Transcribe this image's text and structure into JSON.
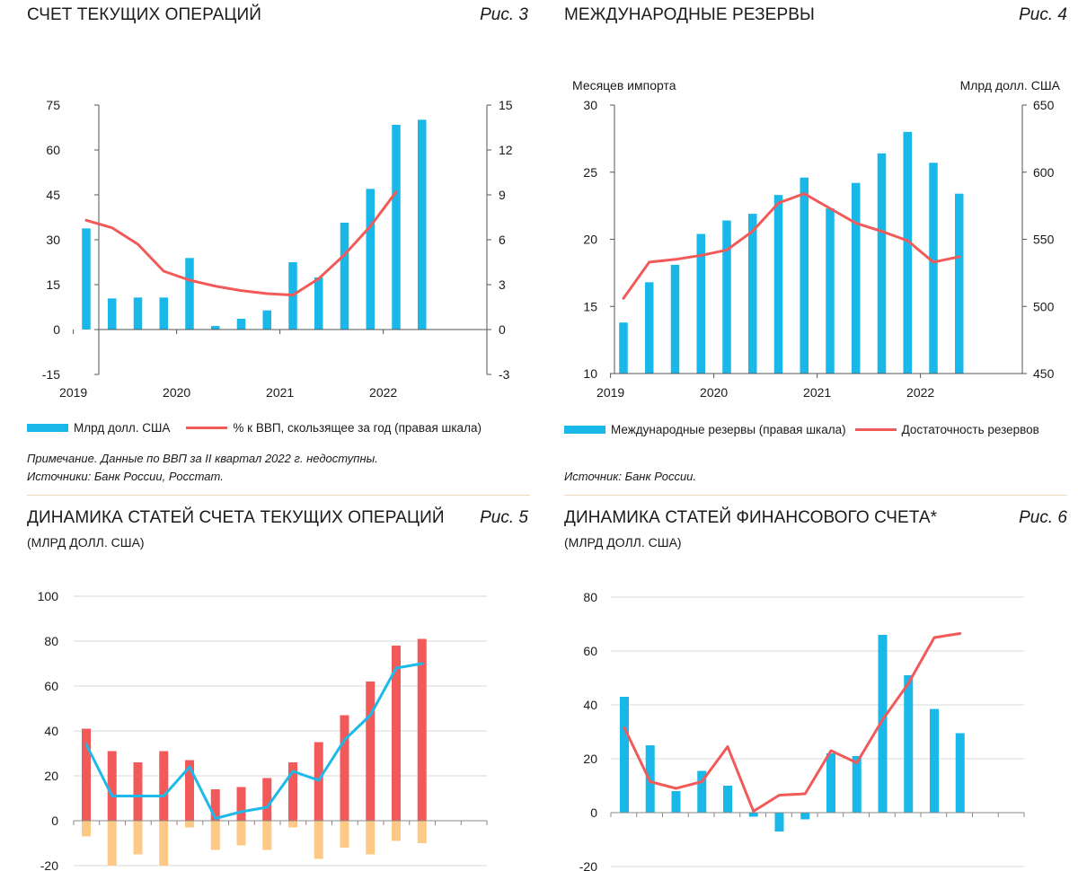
{
  "colors": {
    "bar": "#19b8e8",
    "line": "#f25a5a",
    "blue_line": "#1db9e9",
    "red_bar": "#f25a5a",
    "orange_bar": "#fdc985",
    "grid": "#d9d9d9"
  },
  "fig3": {
    "title": "СЧЕТ ТЕКУЩИХ ОПЕРАЦИЙ",
    "fig_label": "Рис. 3",
    "legend_bar": "Млрд долл. США",
    "legend_line": "% к ВВП, скользящее за год (правая шкала)",
    "note": "Примечание. Данные по ВВП за II квартал 2022 г. недоступны.",
    "source": "Источники: Банк России, Росстат."
  },
  "fig4": {
    "title": "МЕЖДУНАРОДНЫЕ РЕЗЕРВЫ",
    "fig_label": "Рис. 4",
    "left_axis_title": "Месяцев импорта",
    "right_axis_title": "Млрд долл. США",
    "legend_bar": "Международные резервы (правая шкала)",
    "legend_line": "Достаточность резервов",
    "source": "Источник: Банк России."
  },
  "fig5": {
    "title": "ДИНАМИКА СТАТЕЙ СЧЕТА ТЕКУЩИХ ОПЕРАЦИЙ",
    "subtitle": "(МЛРД ДОЛЛ. США)",
    "fig_label": "Рис. 5"
  },
  "fig6": {
    "title": "ДИНАМИКА СТАТЕЙ ФИНАНСОВОГО СЧЕТА*",
    "subtitle": "(МЛРД ДОЛЛ. США)",
    "fig_label": "Рис. 6"
  },
  "chart_data": [
    {
      "id": "fig3",
      "type": "bar",
      "x_tick_labels": [
        "2019",
        "2020",
        "2021",
        "2022"
      ],
      "x_tick_positions": [
        0,
        4,
        8,
        12
      ],
      "left_axis": {
        "ylim": [
          -15,
          75
        ],
        "ticks": [
          75,
          60,
          45,
          30,
          15,
          0,
          -15
        ]
      },
      "right_axis": {
        "ylim": [
          -3,
          15
        ],
        "ticks": [
          15,
          12,
          9,
          6,
          3,
          0,
          -3
        ]
      },
      "series": [
        {
          "name": "Млрд долл. США",
          "type": "bar",
          "axis": "left",
          "values": [
            33.8,
            10.4,
            10.7,
            10.7,
            23.9,
            1.2,
            3.6,
            6.4,
            22.5,
            17.4,
            35.7,
            47.0,
            68.4,
            70.1
          ]
        },
        {
          "name": "% к ВВП, скользящее за год (правая шкала)",
          "type": "line",
          "axis": "right",
          "values": [
            7.3,
            6.8,
            5.7,
            3.9,
            3.3,
            2.9,
            2.6,
            2.4,
            2.3,
            3.4,
            5.0,
            6.9,
            9.2,
            null
          ]
        }
      ]
    },
    {
      "id": "fig4",
      "type": "bar",
      "x_tick_labels": [
        "2019",
        "2020",
        "2021",
        "2022"
      ],
      "x_tick_positions": [
        0,
        4,
        8,
        12
      ],
      "left_axis": {
        "title": "Месяцев импорта",
        "ylim": [
          10,
          30
        ],
        "ticks": [
          30,
          25,
          20,
          15,
          10
        ]
      },
      "right_axis": {
        "title": "Млрд долл. США",
        "ylim": [
          450,
          650
        ],
        "ticks": [
          650,
          600,
          550,
          500,
          450
        ]
      },
      "series": [
        {
          "name": "Международные резервы (правая шкала)",
          "type": "bar",
          "axis": "right",
          "values": [
            488,
            518,
            531,
            554,
            564,
            569,
            583,
            596,
            573,
            592,
            614,
            630,
            607,
            584
          ]
        },
        {
          "name": "Достаточность резервов",
          "type": "line",
          "axis": "left",
          "values": [
            15.6,
            18.3,
            18.5,
            18.8,
            19.2,
            20.6,
            22.7,
            23.4,
            22.3,
            21.2,
            20.6,
            19.9,
            18.3,
            18.7
          ]
        }
      ]
    },
    {
      "id": "fig5",
      "type": "bar",
      "ylim": [
        -20,
        100
      ],
      "ticks": [
        100,
        80,
        60,
        40,
        20,
        0,
        -20
      ],
      "series": [
        {
          "name": "red",
          "type": "bar",
          "values": [
            41,
            31,
            26,
            31,
            27,
            14,
            15,
            19,
            26,
            35,
            47,
            62,
            78,
            81
          ]
        },
        {
          "name": "orange",
          "type": "bar",
          "values": [
            -7,
            -20,
            -15,
            -20,
            -3,
            -13,
            -11,
            -13,
            -3,
            -17,
            -12,
            -15,
            -9,
            -10
          ]
        },
        {
          "name": "blue",
          "type": "line",
          "values": [
            34,
            11,
            11,
            11,
            24,
            1,
            4,
            6,
            22,
            18,
            36,
            47,
            68,
            70
          ]
        }
      ]
    },
    {
      "id": "fig6",
      "type": "bar",
      "ylim": [
        -20,
        80
      ],
      "ticks": [
        80,
        60,
        40,
        20,
        0,
        -20
      ],
      "series": [
        {
          "name": "blue",
          "type": "bar",
          "values": [
            43,
            25,
            8,
            15.5,
            10,
            -1.5,
            -7,
            -2.5,
            22,
            21,
            66,
            51,
            38.5,
            29.5
          ]
        },
        {
          "name": "red",
          "type": "line",
          "values": [
            31.5,
            11.5,
            9,
            11.5,
            24.5,
            0.5,
            6.5,
            7,
            23,
            18.5,
            34.5,
            48,
            65,
            66.5
          ]
        }
      ]
    }
  ]
}
